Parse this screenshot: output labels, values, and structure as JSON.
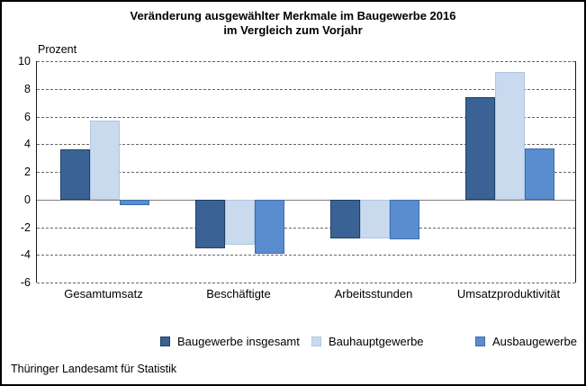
{
  "title": {
    "line1": "Veränderung ausgewählter Merkmale im Baugewerbe 2016",
    "line2": "im Vergleich zum Vorjahr"
  },
  "footer": {
    "source": "Thüringer Landesamt für Statistik"
  },
  "chart_data": {
    "type": "bar",
    "title": "Veränderung ausgewählter Merkmale im Baugewerbe 2016 im Vergleich zum Vorjahr",
    "ylabel": "Prozent",
    "xlabel": "",
    "categories": [
      "Gesamtumsatz",
      "Beschäftigte",
      "Arbeitsstunden",
      "Umsatzproduktivität"
    ],
    "series": [
      {
        "name": "Baugewerbe insgesamt",
        "color": "#3b6294",
        "border_color": "#1f4064",
        "values": [
          3.6,
          -3.5,
          -2.8,
          7.4
        ]
      },
      {
        "name": "Bauhauptgewerbe",
        "color": "#c9d9ee",
        "border_color": "#aec6e4",
        "values": [
          5.7,
          -3.3,
          -2.8,
          9.2
        ]
      },
      {
        "name": "Ausbaugewerbe",
        "color": "#5a8cd0",
        "border_color": "#3c6da9",
        "values": [
          -0.4,
          -3.9,
          -2.9,
          3.7
        ]
      }
    ],
    "ylim": [
      -6,
      10
    ],
    "ytick_step": 2,
    "yticks": [
      10,
      8,
      6,
      4,
      2,
      0,
      -2,
      -4,
      -6
    ],
    "grid": "horizontal-dashed",
    "zero_line": true,
    "legend_position": "bottom"
  }
}
